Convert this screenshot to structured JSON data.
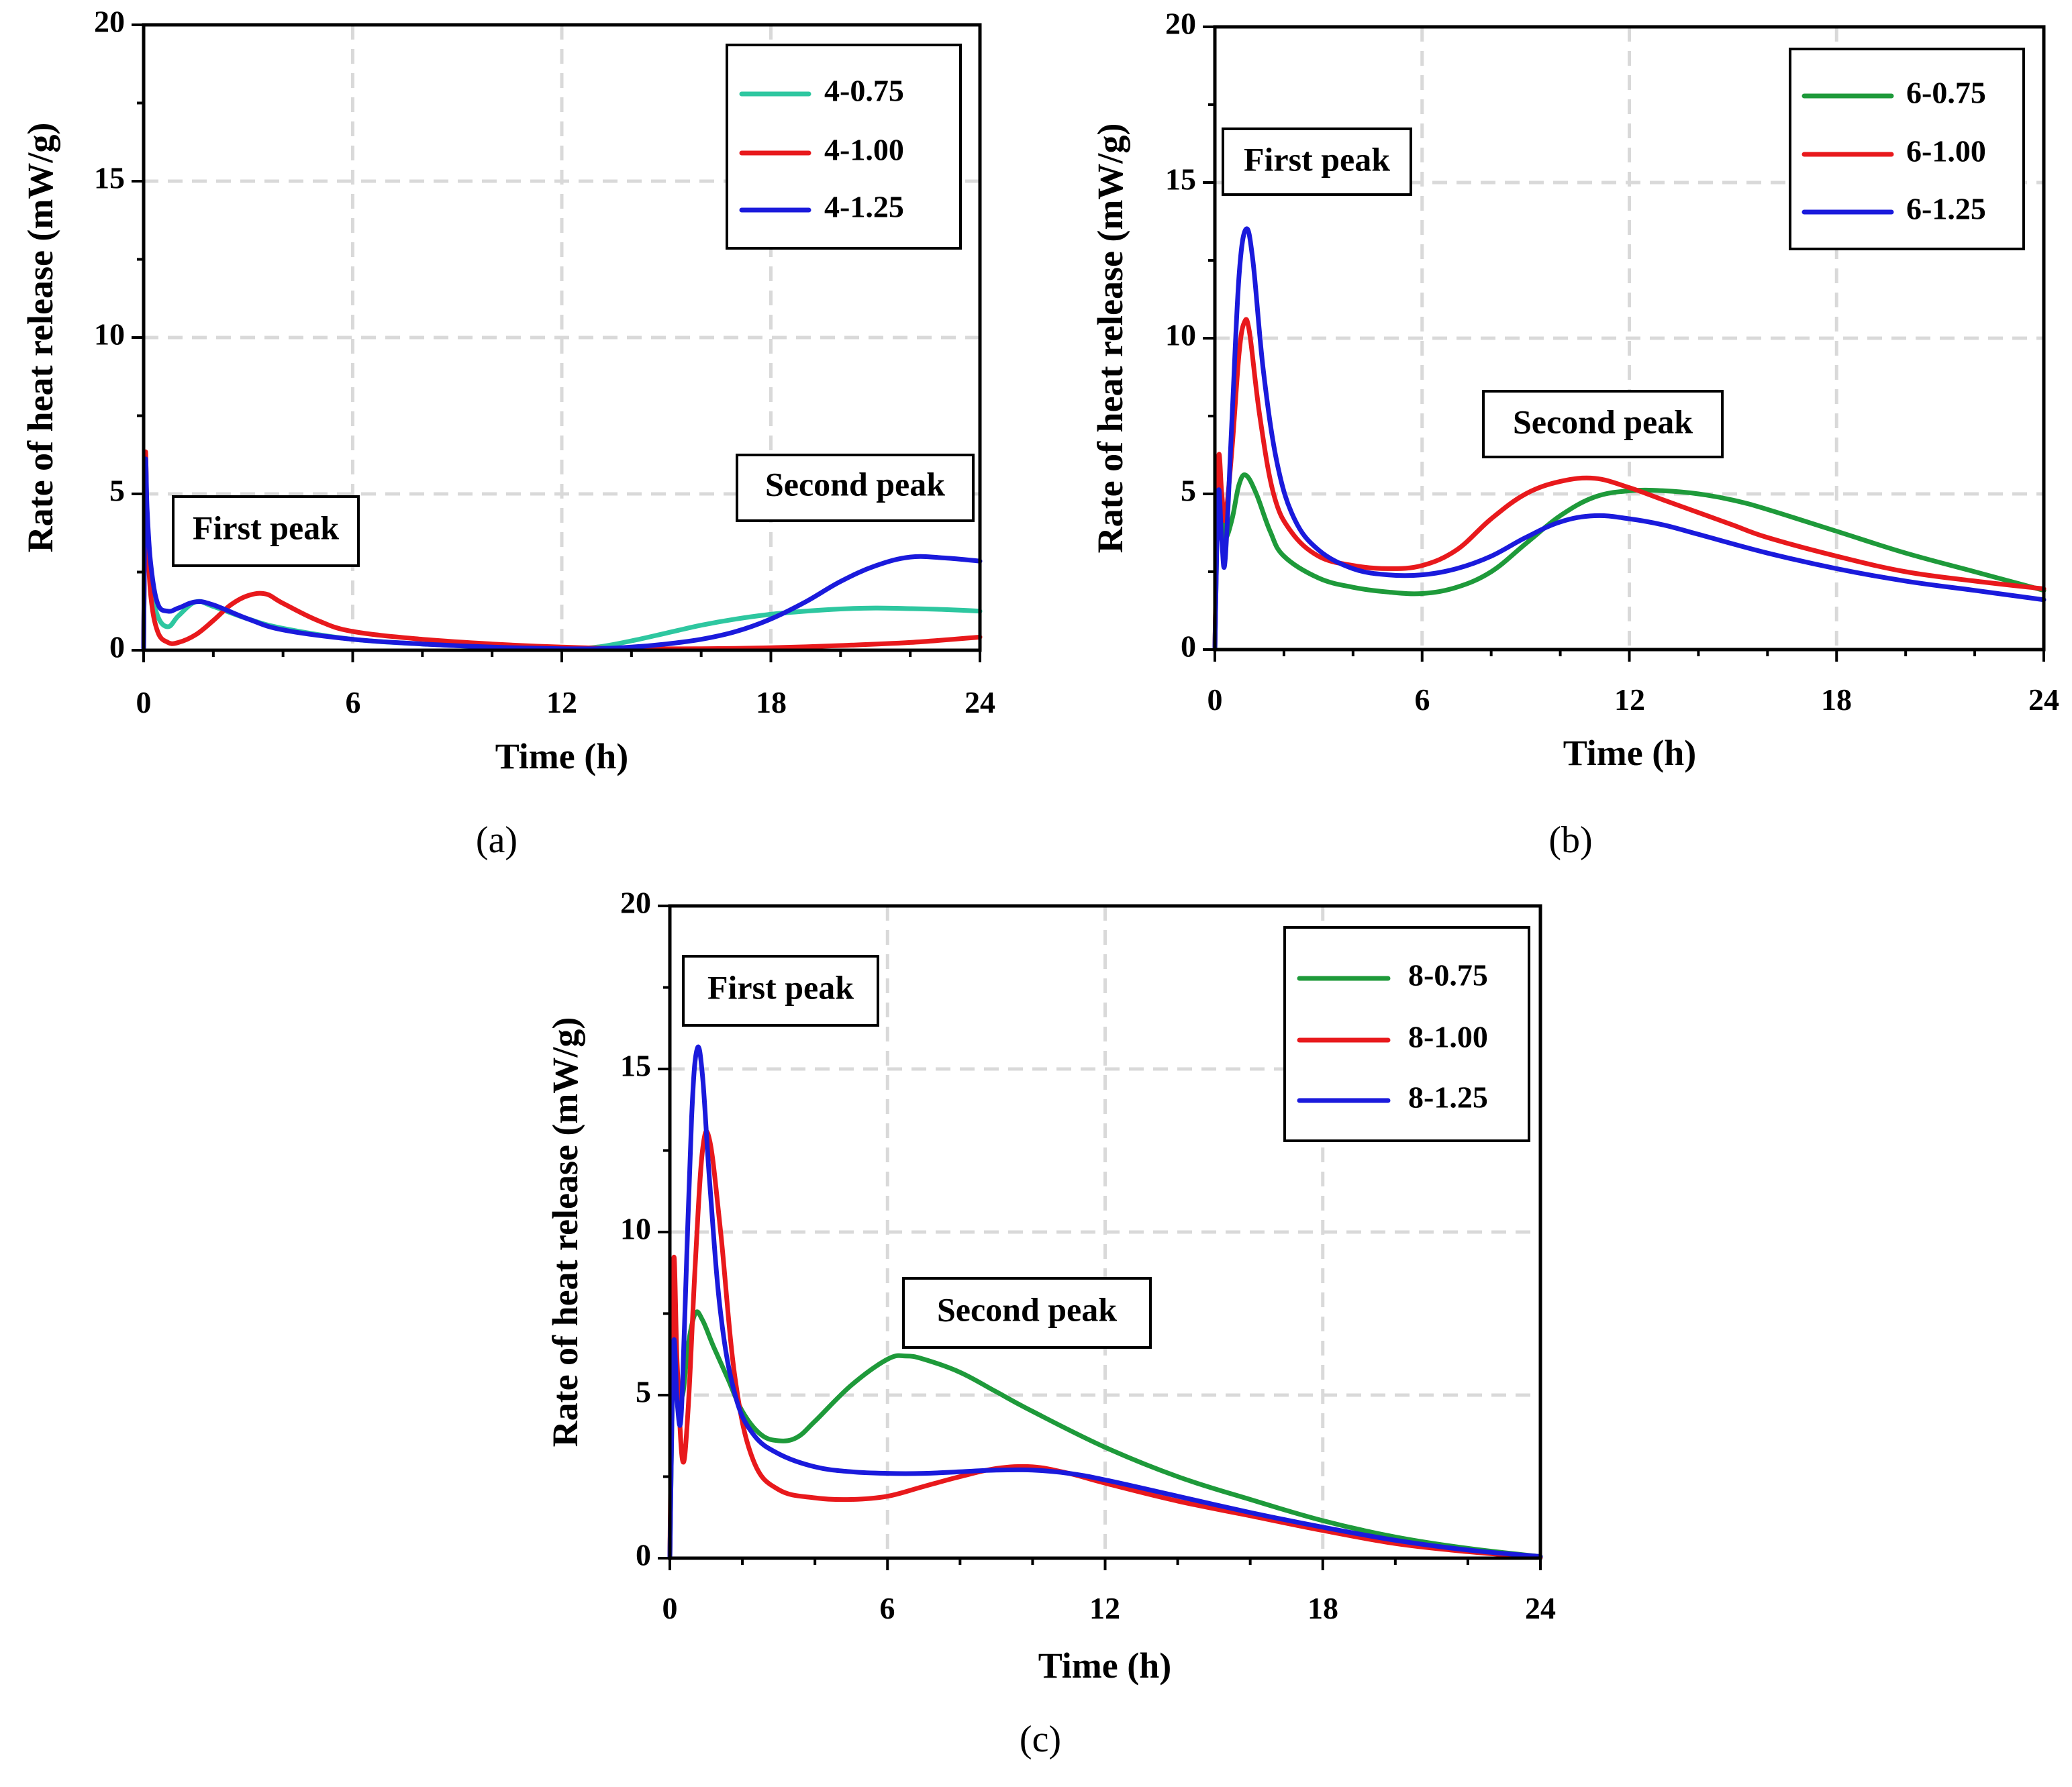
{
  "figure": {
    "colors": {
      "green_a": "#2ec7a0",
      "green": "#1e9a3a",
      "red": "#e8191c",
      "blue": "#1a1adc"
    }
  },
  "chart_data": [
    {
      "type": "line",
      "caption": "(a)",
      "xlabel": "Time (h)",
      "ylabel": "Rate of heat release (mW/g)",
      "xlim": [
        0,
        24
      ],
      "ylim": [
        0,
        20
      ],
      "xticks": [
        "0",
        "6",
        "12",
        "18",
        "24"
      ],
      "yticks": [
        "0",
        "5",
        "10",
        "15",
        "20"
      ],
      "grid": true,
      "legend_position": "top-right",
      "annotations": [
        {
          "text": "First peak",
          "x": 3.5,
          "y": 3.7
        },
        {
          "text": "Second peak",
          "x": 20.5,
          "y": 5.2
        }
      ],
      "series": [
        {
          "name": "4-0.75",
          "color": "#2ec7a0",
          "x": [
            0,
            0.05,
            0.1,
            0.2,
            0.4,
            0.7,
            1.0,
            1.5,
            2.0,
            3.0,
            4.0,
            6.0,
            8.0,
            10.0,
            12.0,
            13.0,
            14.0,
            15.0,
            16.0,
            17.0,
            18.0,
            19.0,
            20.0,
            21.0,
            22.0,
            23.0,
            24.0
          ],
          "y": [
            0,
            5.8,
            4.2,
            2.2,
            1.1,
            0.75,
            1.1,
            1.55,
            1.4,
            1.0,
            0.7,
            0.35,
            0.2,
            0.1,
            0.05,
            0.1,
            0.3,
            0.55,
            0.8,
            1.0,
            1.15,
            1.25,
            1.32,
            1.35,
            1.33,
            1.3,
            1.25
          ]
        },
        {
          "name": "4-1.00",
          "color": "#e8191c",
          "x": [
            0,
            0.05,
            0.1,
            0.2,
            0.4,
            0.7,
            1.0,
            1.5,
            2.0,
            2.5,
            3.0,
            3.5,
            4.0,
            5.0,
            6.0,
            8.0,
            10.0,
            12.0,
            14.0,
            16.0,
            18.0,
            20.0,
            22.0,
            24.0
          ],
          "y": [
            0,
            6.2,
            4.0,
            1.8,
            0.6,
            0.25,
            0.25,
            0.5,
            0.95,
            1.45,
            1.75,
            1.8,
            1.5,
            0.95,
            0.6,
            0.35,
            0.2,
            0.1,
            0.05,
            0.05,
            0.08,
            0.15,
            0.25,
            0.42
          ]
        },
        {
          "name": "4-1.25",
          "color": "#1a1adc",
          "x": [
            0,
            0.05,
            0.1,
            0.2,
            0.4,
            0.7,
            1.0,
            1.5,
            2.0,
            3.0,
            4.0,
            6.0,
            8.0,
            10.0,
            12.0,
            13.0,
            14.0,
            15.0,
            16.0,
            17.0,
            18.0,
            19.0,
            20.0,
            21.0,
            22.0,
            23.0,
            24.0
          ],
          "y": [
            0,
            5.9,
            4.5,
            2.8,
            1.5,
            1.25,
            1.35,
            1.55,
            1.45,
            1.0,
            0.65,
            0.35,
            0.2,
            0.1,
            0.05,
            0.05,
            0.1,
            0.2,
            0.35,
            0.6,
            1.0,
            1.55,
            2.2,
            2.7,
            2.98,
            2.95,
            2.85
          ]
        }
      ]
    },
    {
      "type": "line",
      "caption": "(b)",
      "xlabel": "Time (h)",
      "ylabel": "Rate of heat release (mW/g)",
      "xlim": [
        0,
        24
      ],
      "ylim": [
        0,
        20
      ],
      "xticks": [
        "0",
        "6",
        "12",
        "18",
        "24"
      ],
      "yticks": [
        "0",
        "5",
        "10",
        "15",
        "20"
      ],
      "grid": true,
      "legend_position": "top-right",
      "annotations": [
        {
          "text": "First peak",
          "x": 3.0,
          "y": 15.8
        },
        {
          "text": "Second peak",
          "x": 11.3,
          "y": 7.2
        }
      ],
      "series": [
        {
          "name": "6-0.75",
          "color": "#1e9a3a",
          "x": [
            0,
            0.1,
            0.2,
            0.3,
            0.5,
            0.7,
            0.9,
            1.2,
            1.6,
            2.0,
            3.0,
            4.0,
            5.0,
            6.0,
            7.0,
            8.0,
            9.0,
            10.0,
            11.0,
            12.0,
            13.0,
            14.0,
            15.0,
            16.0,
            18.0,
            20.0,
            22.0,
            24.0
          ],
          "y": [
            0,
            5.2,
            4.5,
            3.6,
            4.2,
            5.3,
            5.6,
            5.0,
            3.8,
            3.0,
            2.3,
            2.0,
            1.85,
            1.8,
            2.0,
            2.5,
            3.4,
            4.3,
            4.9,
            5.1,
            5.1,
            5.0,
            4.8,
            4.5,
            3.8,
            3.1,
            2.5,
            1.9
          ]
        },
        {
          "name": "6-1.00",
          "color": "#e8191c",
          "x": [
            0,
            0.1,
            0.2,
            0.3,
            0.5,
            0.7,
            0.85,
            1.0,
            1.3,
            1.7,
            2.2,
            3.0,
            4.0,
            5.0,
            6.0,
            7.0,
            8.0,
            9.0,
            10.0,
            11.0,
            12.0,
            13.0,
            14.0,
            15.0,
            16.0,
            18.0,
            20.0,
            22.0,
            24.0
          ],
          "y": [
            0,
            6.0,
            5.0,
            4.2,
            6.5,
            9.5,
            10.5,
            10.2,
            7.5,
            5.0,
            3.8,
            3.0,
            2.7,
            2.6,
            2.7,
            3.2,
            4.2,
            5.0,
            5.4,
            5.5,
            5.2,
            4.8,
            4.4,
            4.0,
            3.6,
            3.0,
            2.5,
            2.2,
            1.95
          ]
        },
        {
          "name": "6-1.25",
          "color": "#1a1adc",
          "x": [
            0,
            0.1,
            0.2,
            0.3,
            0.5,
            0.7,
            0.9,
            1.1,
            1.4,
            1.8,
            2.3,
            3.0,
            4.0,
            5.0,
            6.0,
            7.0,
            8.0,
            9.0,
            10.0,
            11.0,
            12.0,
            13.0,
            14.0,
            16.0,
            18.0,
            20.0,
            22.0,
            24.0
          ],
          "y": [
            0,
            5.0,
            3.5,
            2.9,
            7.5,
            12.0,
            13.5,
            12.5,
            9.0,
            6.0,
            4.2,
            3.2,
            2.6,
            2.4,
            2.4,
            2.6,
            3.0,
            3.6,
            4.1,
            4.3,
            4.2,
            4.0,
            3.7,
            3.1,
            2.6,
            2.2,
            1.9,
            1.6
          ]
        }
      ]
    },
    {
      "type": "line",
      "caption": "(c)",
      "xlabel": "Time (h)",
      "ylabel": "Rate of heat release (mW/g)",
      "xlim": [
        0,
        24
      ],
      "ylim": [
        0,
        20
      ],
      "xticks": [
        "0",
        "6",
        "12",
        "18",
        "24"
      ],
      "yticks": [
        "0",
        "5",
        "10",
        "15",
        "20"
      ],
      "grid": true,
      "legend_position": "top-right",
      "annotations": [
        {
          "text": "First peak",
          "x": 3.0,
          "y": 17.5
        },
        {
          "text": "Second peak",
          "x": 9.8,
          "y": 7.6
        }
      ],
      "series": [
        {
          "name": "8-0.75",
          "color": "#1e9a3a",
          "x": [
            0,
            0.1,
            0.2,
            0.35,
            0.5,
            0.7,
            0.9,
            1.2,
            1.6,
            2.0,
            2.5,
            3.0,
            3.5,
            4.0,
            5.0,
            6.0,
            6.5,
            7.0,
            8.0,
            9.0,
            10.0,
            12.0,
            14.0,
            16.0,
            18.0,
            20.0,
            22.0,
            24.0
          ],
          "y": [
            0,
            6.5,
            5.5,
            5.0,
            6.5,
            7.5,
            7.3,
            6.5,
            5.5,
            4.5,
            3.8,
            3.6,
            3.7,
            4.2,
            5.3,
            6.1,
            6.2,
            6.1,
            5.7,
            5.1,
            4.5,
            3.4,
            2.5,
            1.8,
            1.15,
            0.65,
            0.3,
            0.05
          ]
        },
        {
          "name": "8-1.00",
          "color": "#e8191c",
          "x": [
            0,
            0.1,
            0.2,
            0.35,
            0.5,
            0.7,
            0.9,
            1.1,
            1.4,
            1.8,
            2.3,
            3.0,
            4.0,
            5.0,
            6.0,
            7.0,
            8.0,
            9.0,
            10.0,
            11.0,
            12.0,
            14.0,
            16.0,
            18.0,
            20.0,
            22.0,
            24.0
          ],
          "y": [
            0,
            9.0,
            6.0,
            3.0,
            4.5,
            9.0,
            12.5,
            12.8,
            10.0,
            5.5,
            3.0,
            2.1,
            1.85,
            1.8,
            1.9,
            2.2,
            2.5,
            2.75,
            2.8,
            2.6,
            2.3,
            1.75,
            1.3,
            0.85,
            0.45,
            0.2,
            0.02
          ]
        },
        {
          "name": "8-1.25",
          "color": "#1a1adc",
          "x": [
            0,
            0.1,
            0.2,
            0.3,
            0.4,
            0.6,
            0.75,
            0.9,
            1.1,
            1.4,
            1.8,
            2.3,
            3.0,
            4.0,
            5.0,
            6.0,
            7.0,
            8.0,
            9.0,
            10.0,
            11.0,
            12.0,
            14.0,
            16.0,
            18.0,
            20.0,
            22.0,
            24.0
          ],
          "y": [
            0,
            6.5,
            4.8,
            4.2,
            7.0,
            13.5,
            15.6,
            14.8,
            11.5,
            7.5,
            5.0,
            3.8,
            3.2,
            2.8,
            2.65,
            2.6,
            2.6,
            2.65,
            2.7,
            2.7,
            2.6,
            2.4,
            1.9,
            1.4,
            0.95,
            0.55,
            0.25,
            0.05
          ]
        }
      ]
    }
  ]
}
